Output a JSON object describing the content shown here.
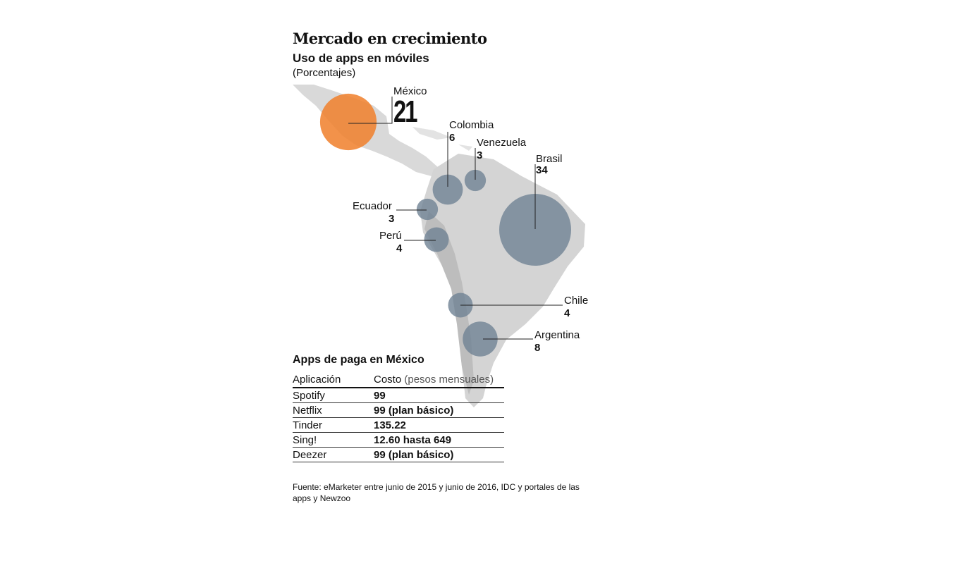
{
  "header": {
    "title": "Mercado en crecimiento",
    "subtitle": "Uso de apps en móviles",
    "unit": "(Porcentajes)"
  },
  "map": {
    "highlight_color": "#f07f2a",
    "bubble_color": "#6f8294",
    "land_color": "#d9d9d9",
    "countries": [
      {
        "name": "México",
        "value": 21
      },
      {
        "name": "Colombia",
        "value": 6
      },
      {
        "name": "Venezuela",
        "value": 3
      },
      {
        "name": "Brasil",
        "value": 34
      },
      {
        "name": "Ecuador",
        "value": 3
      },
      {
        "name": "Perú",
        "value": 4
      },
      {
        "name": "Chile",
        "value": 4
      },
      {
        "name": "Argentina",
        "value": 8
      }
    ]
  },
  "table": {
    "title": "Apps de paga en México",
    "headers": {
      "app": "Aplicación",
      "cost": "Costo",
      "cost_unit": "(pesos mensuales)"
    },
    "rows": [
      {
        "app": "Spotify",
        "cost": "99"
      },
      {
        "app": "Netflix",
        "cost": "99 (plan básico)"
      },
      {
        "app": "Tinder",
        "cost": "135.22"
      },
      {
        "app": "Sing!",
        "cost": "12.60 hasta 649"
      },
      {
        "app": "Deezer",
        "cost": "99 (plan básico)"
      }
    ]
  },
  "source": "Fuente: eMarketer entre junio de 2015 y junio de 2016, IDC y portales de las apps y Newzoo"
}
